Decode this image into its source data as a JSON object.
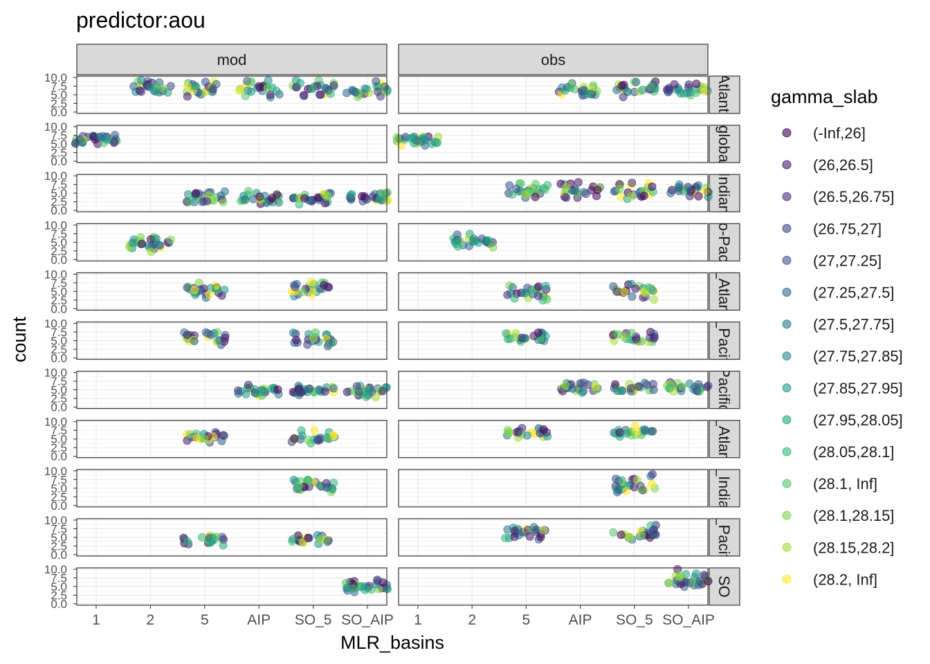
{
  "chart_data": {
    "type": "scatter",
    "title": "predictor:aou",
    "xlabel": "MLR_basins",
    "ylabel": "count",
    "x_categories": [
      "1",
      "2",
      "5",
      "AIP",
      "SO_5",
      "SO_AIP"
    ],
    "y_ticks": [
      "0.0",
      "2.5",
      "5.0",
      "7.5",
      "10.0"
    ],
    "ylim": [
      0,
      10
    ],
    "grid": true,
    "column_facets": [
      "mod",
      "obs"
    ],
    "row_facets": [
      "Atlanti",
      "globa",
      "Indian",
      "o-Pac",
      "_Atlan",
      "_Pacif",
      "Pacific",
      "_Atlan",
      "_India",
      "_Pacif",
      "SO"
    ],
    "legend": {
      "title": "gamma_slab",
      "position": "right",
      "entries": [
        "(-Inf,26]",
        "(26,26.5]",
        "(26.5,26.75]",
        "(26.75,27]",
        "(27,27.25]",
        "(27.25,27.5]",
        "(27.5,27.75]",
        "(27.75,27.85]",
        "(27.85,27.95]",
        "(27.95,28.05]",
        "(28.05,28.1]",
        "(28.1, Inf]",
        "(28.1,28.15]",
        "(28.15,28.2]",
        "(28.2, Inf]"
      ],
      "colors": [
        "#440154",
        "#481A6C",
        "#472F7D",
        "#414487",
        "#39568C",
        "#31688E",
        "#2A788E",
        "#23888E",
        "#1F988B",
        "#22A884",
        "#35B779",
        "#54C568",
        "#7AD151",
        "#A5DB36",
        "#FDE725"
      ]
    },
    "cell_data": [
      [
        {
          "categories": [
            "2",
            "5",
            "AIP",
            "SO_5",
            "SO_AIP"
          ],
          "ymean": 6.8,
          "spread": 1.9,
          "points_per_group": 24
        },
        {
          "categories": [
            "AIP",
            "SO_5",
            "SO_AIP"
          ],
          "ymean": 6.5,
          "spread": 1.6,
          "points_per_group": 24
        }
      ],
      [
        {
          "categories": [
            "1"
          ],
          "ymean": 6.4,
          "spread": 1.0,
          "points_per_group": 30
        },
        {
          "categories": [
            "1"
          ],
          "ymean": 6.0,
          "spread": 1.2,
          "points_per_group": 30
        }
      ],
      [
        {
          "categories": [
            "5",
            "AIP",
            "SO_5",
            "SO_AIP"
          ],
          "ymean": 3.7,
          "spread": 1.3,
          "points_per_group": 24
        },
        {
          "categories": [
            "5",
            "AIP",
            "SO_5",
            "SO_AIP"
          ],
          "ymean": 5.8,
          "spread": 1.8,
          "points_per_group": 24
        }
      ],
      [
        {
          "categories": [
            "2"
          ],
          "ymean": 4.5,
          "spread": 1.5,
          "points_per_group": 28
        },
        {
          "categories": [
            "2"
          ],
          "ymean": 5.4,
          "spread": 1.4,
          "points_per_group": 26
        }
      ],
      [
        {
          "categories": [
            "5",
            "SO_5"
          ],
          "ymean": 5.6,
          "spread": 1.6,
          "points_per_group": 24
        },
        {
          "categories": [
            "5",
            "SO_5"
          ],
          "ymean": 4.8,
          "spread": 1.8,
          "points_per_group": 24
        }
      ],
      [
        {
          "categories": [
            "5",
            "SO_5"
          ],
          "ymean": 5.2,
          "spread": 1.8,
          "points_per_group": 24
        },
        {
          "categories": [
            "5",
            "SO_5"
          ],
          "ymean": 5.8,
          "spread": 1.2,
          "points_per_group": 22
        }
      ],
      [
        {
          "categories": [
            "AIP",
            "SO_5",
            "SO_AIP"
          ],
          "ymean": 4.6,
          "spread": 1.3,
          "points_per_group": 26
        },
        {
          "categories": [
            "AIP",
            "SO_5",
            "SO_AIP"
          ],
          "ymean": 5.6,
          "spread": 1.1,
          "points_per_group": 24
        }
      ],
      [
        {
          "categories": [
            "5",
            "SO_5"
          ],
          "ymean": 5.5,
          "spread": 1.4,
          "points_per_group": 22
        },
        {
          "categories": [
            "5",
            "SO_5"
          ],
          "ymean": 7.0,
          "spread": 1.4,
          "points_per_group": 22
        }
      ],
      [
        {
          "categories": [
            "SO_5"
          ],
          "ymean": 6.0,
          "spread": 1.5,
          "points_per_group": 26
        },
        {
          "categories": [
            "SO_5"
          ],
          "ymean": 6.5,
          "spread": 2.0,
          "points_per_group": 26
        }
      ],
      [
        {
          "categories": [
            "5",
            "SO_5"
          ],
          "ymean": 4.2,
          "spread": 1.0,
          "points_per_group": 22
        },
        {
          "categories": [
            "5",
            "SO_5"
          ],
          "ymean": 6.4,
          "spread": 1.8,
          "points_per_group": 24
        }
      ],
      [
        {
          "categories": [
            "SO_AIP"
          ],
          "ymean": 5.2,
          "spread": 1.6,
          "points_per_group": 30
        },
        {
          "categories": [
            "SO_AIP"
          ],
          "ymean": 7.0,
          "spread": 2.2,
          "points_per_group": 30
        }
      ]
    ]
  }
}
